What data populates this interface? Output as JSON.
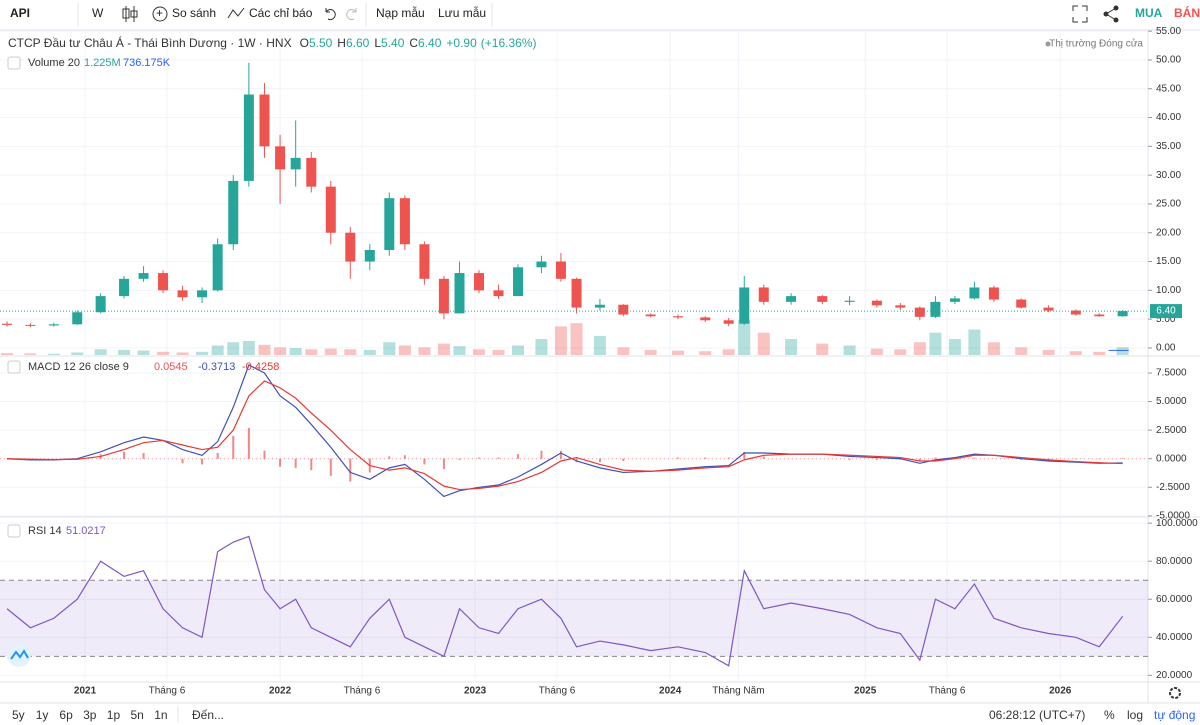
{
  "toolbar": {
    "symbol": "API",
    "interval": "W",
    "compare": "So sánh",
    "indicators": "Các chỉ báo",
    "load": "Nạp mẫu",
    "save": "Lưu mẫu",
    "buy": "MUA",
    "sell": "BÁN"
  },
  "header": {
    "title": "CTCP Đầu tư Châu Á - Thái Bình Dương · 1W · HNX",
    "ohlc_keys": [
      "O",
      "H",
      "L",
      "C"
    ],
    "ohlc_labels": [
      "5.50",
      "6.60",
      "5.40",
      "6.40"
    ],
    "change": 0.9,
    "change_label": "+0.90",
    "change_pct": 16.36,
    "change_pct_label": "(+16.36%)",
    "market_status": "Thị trường Đóng cửa"
  },
  "footer": {
    "ranges": [
      "5y",
      "1y",
      "6p",
      "3p",
      "1p",
      "5n",
      "1n"
    ],
    "goto": "Đến...",
    "clock": "06:28:12 (UTC+7)",
    "percent": "%",
    "log": "log",
    "auto": "tự động"
  },
  "chart_data": [
    {
      "type": "candlestick",
      "legend": "Volume 20",
      "volume_last_label": "1.225M",
      "volume_ma": 736175,
      "volume_ma_label": "736.175K",
      "up_color": "#26a69a",
      "down_color": "#ef5350",
      "xlim": [
        2020.564,
        2026.45
      ],
      "xticks": [
        {
          "value": 2021,
          "label": "2021"
        },
        {
          "value": 2021.42,
          "label": "Tháng 6"
        },
        {
          "value": 2022,
          "label": "2022"
        },
        {
          "value": 2022.42,
          "label": "Tháng 6"
        },
        {
          "value": 2023,
          "label": "2023"
        },
        {
          "value": 2023.42,
          "label": "Tháng 6"
        },
        {
          "value": 2024,
          "label": "2024"
        },
        {
          "value": 2024.35,
          "label": "Tháng Năm"
        },
        {
          "value": 2025,
          "label": "2025"
        },
        {
          "value": 2025.42,
          "label": "Tháng 6"
        },
        {
          "value": 2026,
          "label": "2026"
        }
      ],
      "ylim": [
        -1.4,
        55.2
      ],
      "yticks": [
        {
          "value": 0,
          "label": "0.00"
        },
        {
          "value": 5,
          "label": "5.00"
        },
        {
          "value": 10,
          "label": "10.00"
        },
        {
          "value": 15,
          "label": "15.00"
        },
        {
          "value": 20,
          "label": "20.00"
        },
        {
          "value": 25,
          "label": "25.00"
        },
        {
          "value": 30,
          "label": "30.00"
        },
        {
          "value": 35,
          "label": "35.00"
        },
        {
          "value": 40,
          "label": "40.00"
        },
        {
          "value": 45,
          "label": "45.00"
        },
        {
          "value": 50,
          "label": "50.00"
        },
        {
          "value": 55,
          "label": "55.00"
        }
      ],
      "x": [
        2020.6,
        2020.72,
        2020.84,
        2020.96,
        2021.08,
        2021.2,
        2021.3,
        2021.4,
        2021.5,
        2021.6,
        2021.68,
        2021.76,
        2021.84,
        2021.92,
        2022.0,
        2022.08,
        2022.16,
        2022.26,
        2022.36,
        2022.46,
        2022.56,
        2022.64,
        2022.74,
        2022.84,
        2022.92,
        2023.02,
        2023.12,
        2023.22,
        2023.34,
        2023.44,
        2023.52,
        2023.64,
        2023.76,
        2023.9,
        2024.04,
        2024.18,
        2024.3,
        2024.38,
        2024.48,
        2024.62,
        2024.78,
        2024.92,
        2025.06,
        2025.18,
        2025.28,
        2025.36,
        2025.46,
        2025.56,
        2025.66,
        2025.8,
        2025.94,
        2026.08,
        2026.2,
        2026.32
      ],
      "open": [
        4.2,
        4.0,
        3.9,
        4.1,
        6.2,
        9.0,
        12.0,
        13.0,
        10.0,
        8.8,
        10.0,
        18.0,
        29.0,
        44.0,
        35.0,
        31.0,
        33.0,
        28.0,
        20.0,
        15.0,
        17.0,
        26.0,
        18.0,
        12.0,
        6.0,
        13.0,
        10.0,
        9.0,
        14.0,
        15.0,
        12.0,
        7.0,
        7.5,
        5.8,
        5.5,
        5.3,
        4.8,
        4.2,
        10.5,
        8.0,
        9.0,
        8.0,
        8.2,
        7.4,
        7.0,
        5.4,
        8.0,
        8.6,
        10.5,
        8.4,
        7.0,
        6.5,
        5.8,
        5.5
      ],
      "high": [
        4.6,
        4.3,
        4.4,
        6.5,
        9.5,
        12.5,
        14.2,
        13.5,
        10.8,
        10.5,
        19.0,
        30.0,
        49.5,
        46.0,
        37.0,
        39.5,
        34.0,
        29.0,
        21.0,
        18.0,
        27.0,
        26.5,
        18.5,
        12.5,
        15.0,
        13.5,
        11.0,
        14.5,
        16.0,
        16.5,
        12.2,
        8.5,
        7.6,
        6.0,
        5.8,
        5.5,
        5.2,
        12.5,
        11.0,
        9.5,
        9.2,
        9.0,
        8.4,
        7.8,
        7.2,
        9.0,
        9.0,
        11.5,
        10.8,
        8.6,
        7.4,
        6.7,
        6.0,
        6.6
      ],
      "low": [
        3.7,
        3.6,
        3.7,
        4.0,
        6.0,
        8.6,
        11.5,
        9.5,
        8.2,
        7.8,
        9.8,
        17.0,
        28.0,
        33.0,
        25.0,
        28.0,
        27.0,
        18.0,
        12.0,
        13.5,
        16.0,
        17.0,
        11.0,
        5.0,
        6.0,
        9.5,
        8.5,
        9.0,
        13.0,
        11.5,
        6.0,
        6.5,
        5.5,
        5.3,
        5.0,
        4.5,
        3.8,
        4.0,
        7.5,
        7.5,
        7.6,
        7.4,
        7.0,
        6.6,
        4.8,
        5.2,
        7.6,
        8.4,
        8.0,
        6.8,
        6.2,
        5.6,
        5.4,
        5.4
      ],
      "close": [
        4.0,
        3.9,
        4.1,
        6.2,
        9.0,
        12.0,
        13.0,
        10.0,
        8.8,
        10.0,
        18.0,
        29.0,
        44.0,
        35.0,
        31.0,
        33.0,
        28.0,
        20.0,
        15.0,
        17.0,
        26.0,
        18.0,
        12.0,
        6.0,
        13.0,
        10.0,
        9.0,
        14.0,
        15.0,
        12.0,
        7.0,
        7.5,
        5.8,
        5.5,
        5.3,
        4.8,
        4.2,
        10.5,
        8.0,
        9.0,
        8.0,
        8.2,
        7.4,
        7.0,
        5.4,
        8.0,
        8.6,
        10.5,
        8.4,
        7.0,
        6.5,
        5.8,
        5.5,
        6.4
      ],
      "volume": [
        300000,
        250000,
        200000,
        400000,
        900000,
        800000,
        700000,
        500000,
        400000,
        500000,
        1500000,
        2000000,
        2200000,
        1600000,
        1200000,
        1100000,
        900000,
        1000000,
        900000,
        800000,
        2000000,
        1500000,
        1200000,
        1800000,
        1400000,
        900000,
        800000,
        1500000,
        2500000,
        4500000,
        5000000,
        3000000,
        1200000,
        800000,
        700000,
        600000,
        900000,
        5500000,
        3500000,
        2500000,
        1800000,
        1500000,
        1000000,
        900000,
        2000000,
        3500000,
        2500000,
        4000000,
        2000000,
        1200000,
        800000,
        600000,
        500000,
        1225000
      ]
    },
    {
      "type": "macd",
      "legend": "MACD 12 26 close 9",
      "ylim": [
        -5.1,
        8.9
      ],
      "yticks": [
        {
          "value": 7.5,
          "label": "7.5000"
        },
        {
          "value": 5,
          "label": "5.0000"
        },
        {
          "value": 2.5,
          "label": "2.5000"
        },
        {
          "value": 0,
          "label": "0.0000"
        },
        {
          "value": -2.5,
          "label": "-2.5000"
        },
        {
          "value": -5,
          "label": "-5.0000"
        }
      ],
      "series": [
        {
          "style": "histogram",
          "color": "#ef5350",
          "values": [
            0.0,
            -0.05,
            -0.02,
            0.05,
            0.4,
            0.6,
            0.5,
            0.0,
            -0.4,
            -0.5,
            0.5,
            2.0,
            2.7,
            0.7,
            -0.7,
            -0.8,
            -1.0,
            -1.5,
            -2.0,
            -1.2,
            0.2,
            0.3,
            -0.5,
            -0.9,
            -0.1,
            0.1,
            0.1,
            0.4,
            0.7,
            0.7,
            -0.3,
            -0.3,
            -0.2,
            0.0,
            0.1,
            0.1,
            0.1,
            0.6,
            0.2,
            0.0,
            0.0,
            -0.1,
            -0.1,
            -0.1,
            -0.2,
            0.1,
            0.1,
            0.1,
            0.0,
            -0.1,
            -0.1,
            -0.05,
            -0.05,
            0.0545
          ]
        },
        {
          "style": "line",
          "color": "#3f51b5",
          "values": [
            0.0,
            -0.1,
            -0.1,
            0.0,
            0.6,
            1.4,
            1.9,
            1.6,
            0.8,
            0.3,
            1.5,
            4.5,
            8.2,
            7.5,
            5.5,
            4.5,
            3.0,
            1.0,
            -1.2,
            -1.8,
            -0.8,
            -0.5,
            -1.8,
            -3.3,
            -2.8,
            -2.5,
            -2.3,
            -1.6,
            -0.5,
            0.5,
            -0.2,
            -0.8,
            -1.2,
            -1.1,
            -0.9,
            -0.7,
            -0.6,
            0.5,
            0.5,
            0.4,
            0.4,
            0.2,
            0.1,
            0.0,
            -0.4,
            -0.1,
            0.1,
            0.4,
            0.3,
            0.0,
            -0.2,
            -0.3,
            -0.4,
            -0.3713
          ]
        },
        {
          "style": "line",
          "color": "#e53935",
          "values": [
            0.0,
            -0.05,
            -0.08,
            -0.05,
            0.2,
            0.8,
            1.4,
            1.6,
            1.2,
            0.8,
            1.0,
            2.5,
            5.5,
            6.8,
            6.2,
            5.3,
            4.0,
            2.5,
            0.8,
            -0.6,
            -1.0,
            -0.8,
            -1.3,
            -2.4,
            -2.7,
            -2.6,
            -2.4,
            -2.0,
            -1.2,
            -0.2,
            0.1,
            -0.5,
            -1.0,
            -1.1,
            -1.0,
            -0.8,
            -0.7,
            -0.1,
            0.3,
            0.4,
            0.4,
            0.3,
            0.2,
            0.1,
            -0.2,
            -0.2,
            0.0,
            0.3,
            0.3,
            0.1,
            -0.1,
            -0.25,
            -0.35,
            -0.4258
          ]
        }
      ]
    },
    {
      "type": "rsi",
      "legend": "RSI 14",
      "ylim": [
        16.5,
        102.7
      ],
      "bands": [
        70,
        30
      ],
      "color": "#7e57c2",
      "yticks": [
        {
          "value": 100,
          "label": "100.0000"
        },
        {
          "value": 80,
          "label": "80.0000"
        },
        {
          "value": 60,
          "label": "60.0000"
        },
        {
          "value": 40,
          "label": "40.0000"
        },
        {
          "value": 20,
          "label": "20.0000"
        }
      ],
      "values": [
        55,
        45,
        50,
        60,
        80,
        72,
        75,
        55,
        45,
        40,
        85,
        90,
        93,
        65,
        55,
        60,
        45,
        40,
        35,
        50,
        60,
        40,
        35,
        30,
        55,
        45,
        42,
        55,
        60,
        50,
        35,
        38,
        36,
        33,
        35,
        32,
        25,
        75,
        55,
        58,
        55,
        52,
        45,
        42,
        28,
        60,
        55,
        68,
        50,
        45,
        42,
        40,
        35,
        51.0217
      ]
    }
  ]
}
